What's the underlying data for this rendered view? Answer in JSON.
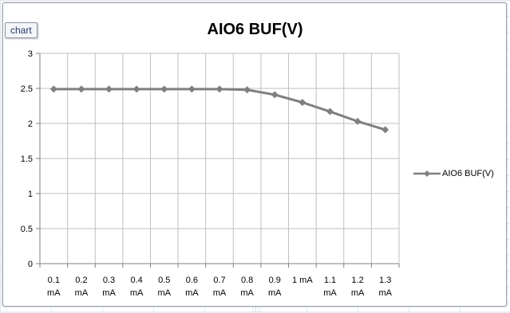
{
  "tag": "chart",
  "chart_data": {
    "type": "line",
    "title": "AIO6 BUF(V)",
    "xlabel": "",
    "ylabel": "",
    "categories": [
      [
        "0.1",
        "mA"
      ],
      [
        "0.2",
        "mA"
      ],
      [
        "0.3",
        "mA"
      ],
      [
        "0.4",
        "mA"
      ],
      [
        "0.5",
        "mA"
      ],
      [
        "0.6",
        "mA"
      ],
      [
        "0.7",
        "mA"
      ],
      [
        "0.8",
        "mA"
      ],
      [
        "0.9",
        "mA"
      ],
      [
        "1 mA",
        ""
      ],
      [
        "1.1",
        "mA"
      ],
      [
        "1.2",
        "mA"
      ],
      [
        "1.3",
        "mA"
      ]
    ],
    "y_ticks": [
      "0",
      "0.5",
      "1",
      "1.5",
      "2",
      "2.5",
      "3"
    ],
    "ylim": [
      0,
      3
    ],
    "grid": true,
    "legend": "right",
    "series": [
      {
        "name": "AIO6 BUF(V)",
        "color": "#7f7f7f",
        "values": [
          2.49,
          2.49,
          2.49,
          2.49,
          2.49,
          2.49,
          2.49,
          2.48,
          2.41,
          2.3,
          2.17,
          2.03,
          1.91
        ]
      }
    ]
  }
}
